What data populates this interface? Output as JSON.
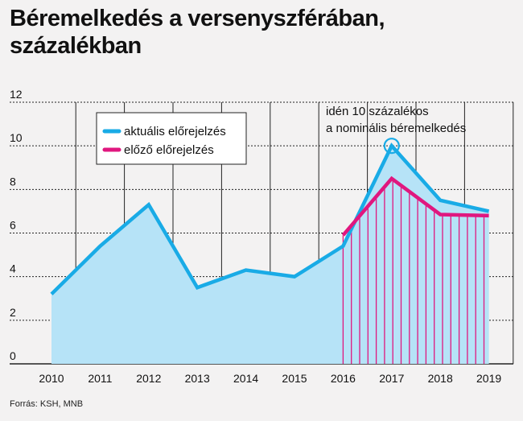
{
  "title": "Béremelkedés a versenyszférában, százalékban",
  "source": "Forrás: KSH, MNB",
  "colors": {
    "current": "#19abe6",
    "current_fill": "#b6e3f7",
    "previous": "#e0177f",
    "grid": "#222222"
  },
  "chart_data": {
    "type": "area",
    "title": "Béremelkedés a versenyszférában, százalékban",
    "ylim": [
      0,
      12
    ],
    "yticks": [
      0,
      2,
      4,
      6,
      8,
      10,
      12
    ],
    "xticks": [
      "2010",
      "2011",
      "2012",
      "2013",
      "2014",
      "2015",
      "2016",
      "2017",
      "2018",
      "2019"
    ],
    "grid": true,
    "legend_position": "top-left",
    "series": [
      {
        "name": "aktuális előrejelzés",
        "color": "#19abe6",
        "x": [
          2010,
          2011,
          2012,
          2013,
          2014,
          2015,
          2016,
          2017,
          2018,
          2019
        ],
        "y": [
          3.2,
          5.4,
          7.3,
          3.5,
          4.3,
          4.0,
          5.4,
          10.0,
          7.5,
          7.0
        ]
      },
      {
        "name": "előző előrejelzés",
        "color": "#e0177f",
        "x": [
          2016,
          2017,
          2018,
          2019
        ],
        "y": [
          5.9,
          8.5,
          6.85,
          6.8
        ]
      }
    ],
    "annotation": {
      "lines": [
        "idén 10 százalékos",
        "a nominális béremelkedés"
      ],
      "x": 2017,
      "y": 10.0
    }
  }
}
